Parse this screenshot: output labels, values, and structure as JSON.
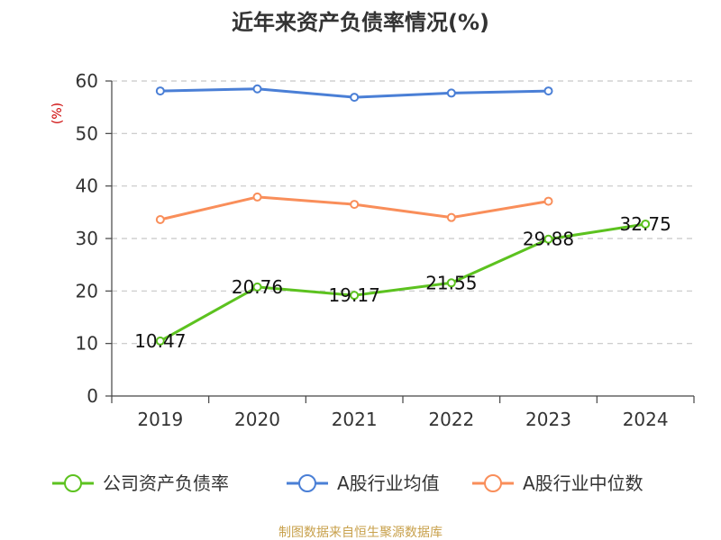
{
  "chart_data": {
    "type": "line",
    "title": "近年来资产负债率情况(%)",
    "ylabel": "(%)",
    "ylabel_color": "#cc0000",
    "xlabel": "",
    "categories": [
      "2019",
      "2020",
      "2021",
      "2022",
      "2023",
      "2024"
    ],
    "ylim": [
      0,
      60
    ],
    "yticks": [
      0,
      10,
      20,
      30,
      40,
      50,
      60
    ],
    "grid": "horizontal-dashed",
    "legend_position": "bottom",
    "series": [
      {
        "name": "公司资产负债率",
        "color": "#5cc21f",
        "values": [
          10.47,
          20.76,
          19.17,
          21.55,
          29.88,
          32.75
        ],
        "labels": [
          "10.47",
          "20.76",
          "19.17",
          "21.55",
          "29.88",
          "32.75"
        ]
      },
      {
        "name": "A股行业均值",
        "color": "#4a7fd6",
        "values": [
          58.1,
          58.5,
          56.9,
          57.7,
          58.1,
          null
        ]
      },
      {
        "name": "A股行业中位数",
        "color": "#f98e5a",
        "values": [
          33.6,
          37.9,
          36.5,
          34.0,
          37.1,
          null
        ]
      }
    ]
  },
  "source": {
    "text": "制图数据来自恒生聚源数据库",
    "color": "#c8a14c"
  }
}
